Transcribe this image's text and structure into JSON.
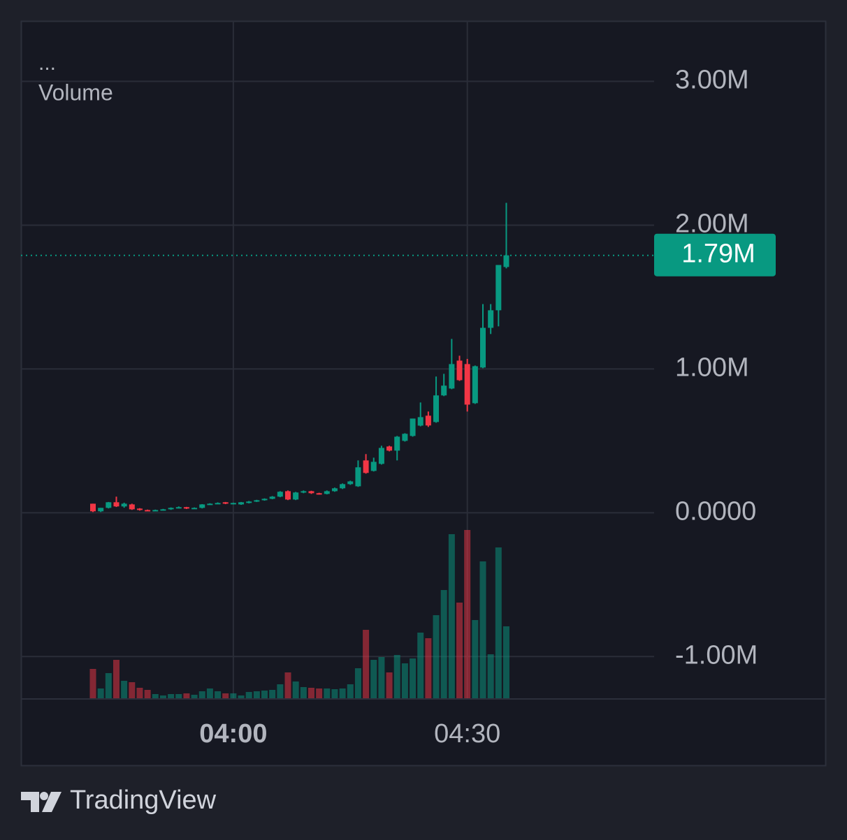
{
  "chart_data": {
    "type": "candlestick",
    "legend_title": "...",
    "x": [
      "03:42",
      "03:43",
      "03:44",
      "03:45",
      "03:46",
      "03:47",
      "03:48",
      "03:49",
      "03:50",
      "03:51",
      "03:52",
      "03:53",
      "03:54",
      "03:55",
      "03:56",
      "03:57",
      "03:58",
      "03:59",
      "04:00",
      "04:01",
      "04:02",
      "04:03",
      "04:04",
      "04:05",
      "04:06",
      "04:07",
      "04:08",
      "04:09",
      "04:10",
      "04:11",
      "04:12",
      "04:13",
      "04:14",
      "04:15",
      "04:16",
      "04:17",
      "04:18",
      "04:19",
      "04:20",
      "04:21",
      "04:22",
      "04:23",
      "04:24",
      "04:25",
      "04:26",
      "04:27",
      "04:28",
      "04:29",
      "04:30",
      "04:31",
      "04:32",
      "04:33",
      "04:34",
      "04:35"
    ],
    "open": [
      63000,
      10000,
      34000,
      73000,
      44000,
      58000,
      29000,
      19000,
      15000,
      19000,
      24000,
      34000,
      39000,
      29000,
      34000,
      58000,
      63000,
      73000,
      63000,
      58000,
      68000,
      78000,
      87000,
      97000,
      112000,
      150000,
      92000,
      141000,
      150000,
      136000,
      131000,
      150000,
      170000,
      199000,
      184000,
      364000,
      291000,
      340000,
      461000,
      432000,
      500000,
      534000,
      606000,
      675000,
      631000,
      816000,
      864000,
      1058000,
      1034000,
      762000,
      1010000,
      1286000,
      1408000,
      1709000
    ],
    "high": [
      63000,
      34000,
      75000,
      112000,
      70000,
      63000,
      32000,
      22000,
      22000,
      27000,
      37000,
      44000,
      41000,
      37000,
      60000,
      66000,
      72000,
      75000,
      70000,
      75000,
      82000,
      90000,
      100000,
      116000,
      150000,
      155000,
      145000,
      155000,
      153000,
      139000,
      155000,
      175000,
      204000,
      223000,
      364000,
      408000,
      383000,
      466000,
      466000,
      534000,
      553000,
      655000,
      767000,
      704000,
      947000,
      966000,
      1209000,
      1092000,
      1070000,
      1024000,
      1451000,
      1451000,
      1723000,
      2155000
    ],
    "low": [
      5000,
      5000,
      30000,
      40000,
      35000,
      20000,
      15000,
      12000,
      12000,
      15000,
      20000,
      30000,
      26000,
      26000,
      30000,
      55000,
      60000,
      60000,
      58000,
      55000,
      65000,
      75000,
      84000,
      94000,
      108000,
      88000,
      88000,
      136000,
      131000,
      126000,
      128000,
      146000,
      165000,
      194000,
      180000,
      272000,
      287000,
      335000,
      427000,
      364000,
      495000,
      529000,
      601000,
      597000,
      626000,
      811000,
      859000,
      917000,
      704000,
      757000,
      1005000,
      1243000,
      1296000,
      1699000
    ],
    "close": [
      10000,
      34000,
      73000,
      44000,
      63000,
      24000,
      19000,
      15000,
      19000,
      24000,
      34000,
      39000,
      29000,
      34000,
      58000,
      63000,
      68000,
      63000,
      68000,
      73000,
      78000,
      87000,
      97000,
      112000,
      146000,
      92000,
      141000,
      150000,
      136000,
      131000,
      150000,
      170000,
      199000,
      218000,
      316000,
      277000,
      354000,
      451000,
      432000,
      529000,
      549000,
      655000,
      665000,
      607000,
      816000,
      884000,
      1034000,
      922000,
      752000,
      1019000,
      1286000,
      1408000,
      1723000,
      1790000
    ],
    "up_color": "#089981",
    "down_color": "#f23645",
    "last_value_label": "1.79M",
    "ylim": [
      -1290000,
      3420000
    ],
    "yticks": [
      {
        "value": -1000000,
        "label": "-1.00M"
      },
      {
        "value": 0,
        "label": "0.0000"
      },
      {
        "value": 1000000,
        "label": "1.00M"
      },
      {
        "value": 2000000,
        "label": "2.00M"
      },
      {
        "value": 3000000,
        "label": "3.00M"
      }
    ],
    "xticks": [
      "04:00",
      "04:30"
    ],
    "grid": true,
    "volume": {
      "name": "Volume",
      "values": [
        42,
        14,
        36,
        55,
        25,
        23,
        15,
        12,
        6,
        4,
        6,
        6,
        7,
        5,
        10,
        14,
        10,
        7,
        7,
        4,
        9,
        10,
        11,
        12,
        20,
        37,
        24,
        16,
        15,
        14,
        14,
        13,
        14,
        20,
        43,
        98,
        55,
        59,
        37,
        62,
        50,
        57,
        94,
        86,
        119,
        155,
        235,
        137,
        241,
        112,
        196,
        63,
        216,
        103
      ],
      "ylim": [
        0,
        250
      ]
    },
    "branding": "TradingView"
  }
}
